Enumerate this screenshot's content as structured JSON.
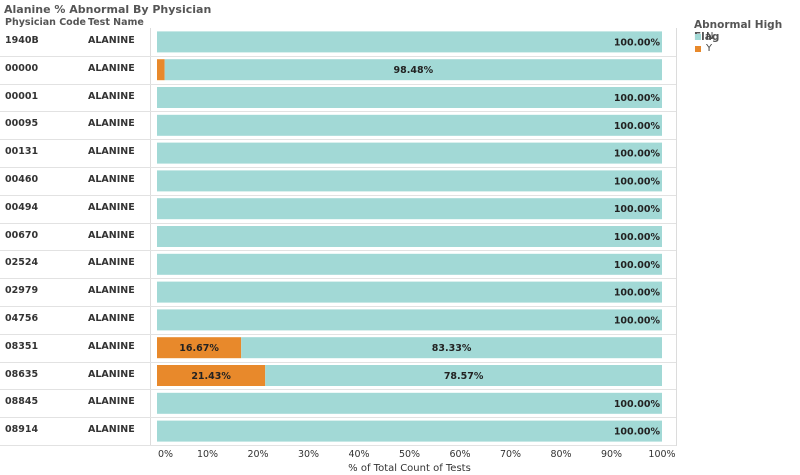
{
  "title": "Alanine % Abnormal By Physician",
  "col_headers": {
    "physician": "Physician Code",
    "test": "Test Name"
  },
  "legend": {
    "title": "Abnormal High Flag",
    "items": [
      {
        "label": "N",
        "color": "#a2d9d6"
      },
      {
        "label": "Y",
        "color": "#e8892b"
      }
    ]
  },
  "chart_data": {
    "type": "bar",
    "orientation": "horizontal",
    "stacked": true,
    "xlabel": "% of Total Count of Tests",
    "xlim": [
      0,
      100
    ],
    "x_ticks": [
      "0%",
      "10%",
      "20%",
      "30%",
      "40%",
      "50%",
      "60%",
      "70%",
      "80%",
      "90%",
      "100%"
    ],
    "rows": [
      {
        "physician": "1940B",
        "test": "ALANINE",
        "Y": 0,
        "N": 100,
        "Y_label": "",
        "N_label": "100.00%"
      },
      {
        "physician": "00000",
        "test": "ALANINE",
        "Y": 1.52,
        "N": 98.48,
        "Y_label": "",
        "N_label": "98.48%"
      },
      {
        "physician": "00001",
        "test": "ALANINE",
        "Y": 0,
        "N": 100,
        "Y_label": "",
        "N_label": "100.00%"
      },
      {
        "physician": "00095",
        "test": "ALANINE",
        "Y": 0,
        "N": 100,
        "Y_label": "",
        "N_label": "100.00%"
      },
      {
        "physician": "00131",
        "test": "ALANINE",
        "Y": 0,
        "N": 100,
        "Y_label": "",
        "N_label": "100.00%"
      },
      {
        "physician": "00460",
        "test": "ALANINE",
        "Y": 0,
        "N": 100,
        "Y_label": "",
        "N_label": "100.00%"
      },
      {
        "physician": "00494",
        "test": "ALANINE",
        "Y": 0,
        "N": 100,
        "Y_label": "",
        "N_label": "100.00%"
      },
      {
        "physician": "00670",
        "test": "ALANINE",
        "Y": 0,
        "N": 100,
        "Y_label": "",
        "N_label": "100.00%"
      },
      {
        "physician": "02524",
        "test": "ALANINE",
        "Y": 0,
        "N": 100,
        "Y_label": "",
        "N_label": "100.00%"
      },
      {
        "physician": "02979",
        "test": "ALANINE",
        "Y": 0,
        "N": 100,
        "Y_label": "",
        "N_label": "100.00%"
      },
      {
        "physician": "04756",
        "test": "ALANINE",
        "Y": 0,
        "N": 100,
        "Y_label": "",
        "N_label": "100.00%"
      },
      {
        "physician": "08351",
        "test": "ALANINE",
        "Y": 16.67,
        "N": 83.33,
        "Y_label": "16.67%",
        "N_label": "83.33%"
      },
      {
        "physician": "08635",
        "test": "ALANINE",
        "Y": 21.43,
        "N": 78.57,
        "Y_label": "21.43%",
        "N_label": "78.57%"
      },
      {
        "physician": "08845",
        "test": "ALANINE",
        "Y": 0,
        "N": 100,
        "Y_label": "",
        "N_label": "100.00%"
      },
      {
        "physician": "08914",
        "test": "ALANINE",
        "Y": 0,
        "N": 100,
        "Y_label": "",
        "N_label": "100.00%"
      }
    ]
  }
}
